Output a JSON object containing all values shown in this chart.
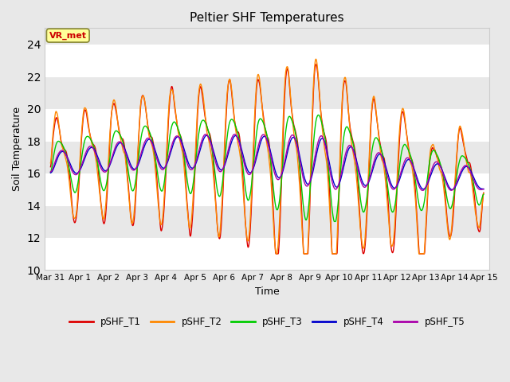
{
  "title": "Peltier SHF Temperatures",
  "ylabel": "Soil Temperature",
  "xlabel": "Time",
  "annotation_text": "VR_met",
  "annotation_color": "#cc0000",
  "annotation_bg": "#ffff99",
  "annotation_edge": "#888833",
  "xlim_days": [
    -0.2,
    15.2
  ],
  "ylim": [
    10,
    25
  ],
  "yticks": [
    10,
    12,
    14,
    16,
    18,
    20,
    22,
    24
  ],
  "bg_color": "#e8e8e8",
  "plot_bg": "#e8e8e8",
  "grid_color": "white",
  "line_colors": {
    "pSHF_T1": "#dd0000",
    "pSHF_T2": "#ff8800",
    "pSHF_T3": "#00cc00",
    "pSHF_T4": "#0000cc",
    "pSHF_T5": "#aa00aa"
  },
  "xtick_labels": [
    "Mar 31",
    "Apr 1",
    "Apr 2",
    "Apr 3",
    "Apr 4",
    "Apr 5",
    "Apr 6",
    "Apr 7",
    "Apr 8",
    "Apr 9",
    "Apr 10",
    "Apr 11",
    "Apr 12",
    "Apr 13",
    "Apr 14",
    "Apr 15"
  ],
  "xtick_positions": [
    0,
    1,
    2,
    3,
    4,
    5,
    6,
    7,
    8,
    9,
    10,
    11,
    12,
    13,
    14,
    15
  ],
  "figsize": [
    6.4,
    4.8
  ],
  "dpi": 100
}
